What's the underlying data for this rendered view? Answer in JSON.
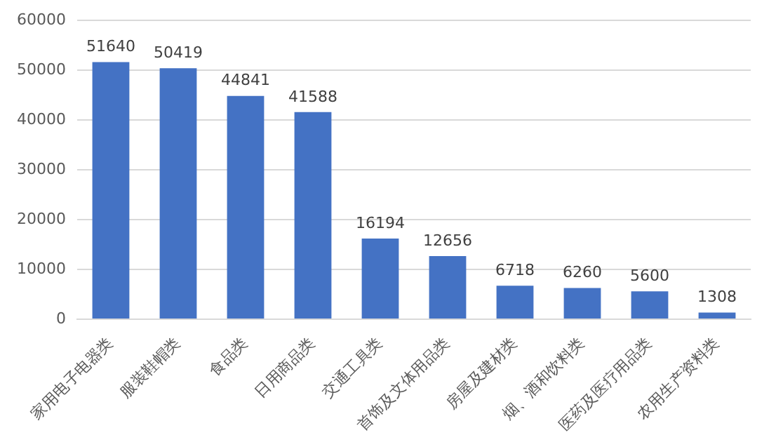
{
  "chart_data": {
    "type": "bar",
    "categories": [
      "家用电子电器类",
      "服装鞋帽类",
      "食品类",
      "日用商品类",
      "交通工具类",
      "首饰及文体用品类",
      "房屋及建材类",
      "烟、酒和饮料类",
      "医药及医疗用品类",
      "农用生产资料类"
    ],
    "values": [
      51640,
      50419,
      44841,
      41588,
      16194,
      12656,
      6718,
      6260,
      5600,
      1308
    ],
    "color": "#4472c4",
    "ylim": [
      0,
      60000
    ],
    "yticks": [
      0,
      10000,
      20000,
      30000,
      40000,
      50000,
      60000
    ],
    "grid": "y",
    "data_labels": true
  }
}
